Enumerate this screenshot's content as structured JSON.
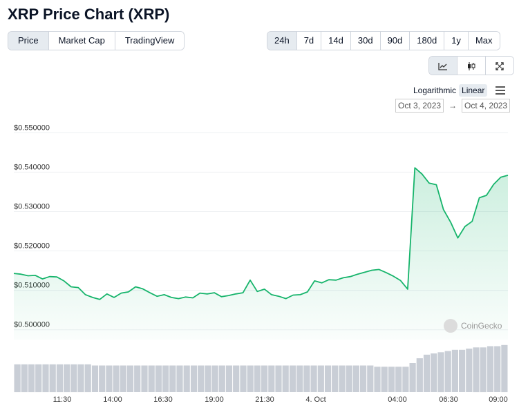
{
  "title": "XRP Price Chart (XRP)",
  "tabs": [
    "Price",
    "Market Cap",
    "TradingView"
  ],
  "ranges": [
    "24h",
    "7d",
    "14d",
    "30d",
    "90d",
    "180d",
    "1y",
    "Max"
  ],
  "scale": {
    "log_label": "Logarithmic",
    "linear_label": "Linear"
  },
  "date_from": "Oct 3, 2023",
  "date_arrow": "→",
  "date_to": "Oct 4, 2023",
  "watermark": "CoinGecko",
  "colors": {
    "line": "#16b46b",
    "volume": "#c9ced6"
  },
  "chart_data": {
    "type": "line",
    "title": "",
    "y_ticks": [
      "$0.550000",
      "$0.540000",
      "$0.530000",
      "$0.520000",
      "$0.510000",
      "$0.500000"
    ],
    "x_ticks": [
      "11:30",
      "14:00",
      "16:30",
      "19:00",
      "21:30",
      "4. Oct",
      "04:00",
      "06:30",
      "09:00"
    ],
    "ylim": [
      0.4975,
      0.5525
    ],
    "series": [
      {
        "values": [
          0.5143,
          0.5141,
          0.5137,
          0.5138,
          0.5129,
          0.5135,
          0.5134,
          0.5124,
          0.5109,
          0.5107,
          0.5089,
          0.5082,
          0.5077,
          0.5091,
          0.5082,
          0.5093,
          0.5096,
          0.5109,
          0.5104,
          0.5094,
          0.5085,
          0.5089,
          0.5082,
          0.5079,
          0.5083,
          0.5081,
          0.5093,
          0.5091,
          0.5094,
          0.5084,
          0.5087,
          0.5091,
          0.5094,
          0.5126,
          0.5097,
          0.5103,
          0.5089,
          0.5085,
          0.5079,
          0.5088,
          0.5089,
          0.5096,
          0.5124,
          0.5119,
          0.5127,
          0.5126,
          0.5132,
          0.5135,
          0.5141,
          0.5146,
          0.5151,
          0.5153,
          0.5145,
          0.5136,
          0.5125,
          0.5103,
          0.5411,
          0.5395,
          0.5372,
          0.5368,
          0.5305,
          0.5273,
          0.5233,
          0.5262,
          0.5275,
          0.5335,
          0.5341,
          0.5369,
          0.5387,
          0.5392
        ]
      }
    ],
    "volume": [
      0.23,
      0.23,
      0.23,
      0.23,
      0.23,
      0.23,
      0.23,
      0.23,
      0.23,
      0.23,
      0.23,
      0.22,
      0.22,
      0.22,
      0.22,
      0.22,
      0.22,
      0.22,
      0.22,
      0.22,
      0.22,
      0.22,
      0.22,
      0.22,
      0.22,
      0.22,
      0.22,
      0.22,
      0.22,
      0.22,
      0.22,
      0.22,
      0.22,
      0.22,
      0.22,
      0.22,
      0.22,
      0.22,
      0.22,
      0.22,
      0.22,
      0.22,
      0.22,
      0.22,
      0.22,
      0.22,
      0.22,
      0.22,
      0.22,
      0.22,
      0.22,
      0.21,
      0.21,
      0.21,
      0.21,
      0.21,
      0.24,
      0.28,
      0.31,
      0.32,
      0.33,
      0.34,
      0.35,
      0.35,
      0.36,
      0.37,
      0.37,
      0.38,
      0.38,
      0.39
    ]
  }
}
